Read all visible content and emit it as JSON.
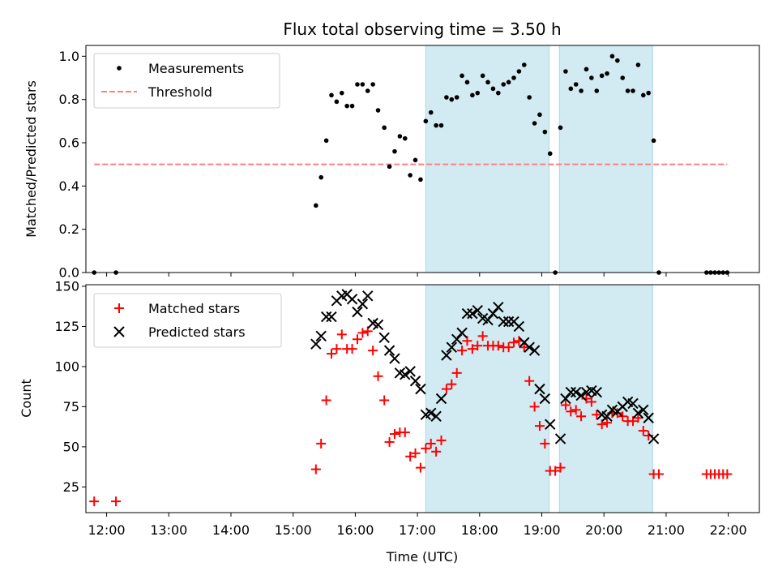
{
  "chart_data": [
    {
      "type": "scatter",
      "title": "Flux total observing time = 3.50 h",
      "xlabel": "",
      "ylabel": "Matched/Predicted stars",
      "xlim": [
        "11:40",
        "22:30"
      ],
      "ylim": [
        0.0,
        1.05
      ],
      "yticks": [
        0.0,
        0.2,
        0.4,
        0.6,
        0.8,
        1.0
      ],
      "ytick_labels": [
        "0.0",
        "0.2",
        "0.4",
        "0.6",
        "0.8",
        "1.0"
      ],
      "legend_position": "upper left",
      "shaded_intervals": [
        [
          "17:08",
          "19:07"
        ],
        [
          "19:17",
          "20:47"
        ]
      ],
      "shade_color": "#add8e6",
      "series": [
        {
          "name": "Measurements",
          "marker": "dot",
          "color": "#000000",
          "points": [
            [
              "11:48",
              0.0
            ],
            [
              "12:09",
              0.0
            ],
            [
              "15:22",
              0.31
            ],
            [
              "15:27",
              0.44
            ],
            [
              "15:32",
              0.61
            ],
            [
              "15:37",
              0.82
            ],
            [
              "15:42",
              0.79
            ],
            [
              "15:47",
              0.83
            ],
            [
              "15:52",
              0.77
            ],
            [
              "15:57",
              0.77
            ],
            [
              "16:02",
              0.87
            ],
            [
              "16:07",
              0.87
            ],
            [
              "16:12",
              0.84
            ],
            [
              "16:17",
              0.87
            ],
            [
              "16:22",
              0.75
            ],
            [
              "16:28",
              0.67
            ],
            [
              "16:33",
              0.49
            ],
            [
              "16:38",
              0.56
            ],
            [
              "16:43",
              0.63
            ],
            [
              "16:48",
              0.62
            ],
            [
              "16:53",
              0.45
            ],
            [
              "16:58",
              0.52
            ],
            [
              "17:03",
              0.43
            ],
            [
              "17:08",
              0.7
            ],
            [
              "17:13",
              0.74
            ],
            [
              "17:18",
              0.68
            ],
            [
              "17:23",
              0.68
            ],
            [
              "17:28",
              0.81
            ],
            [
              "17:33",
              0.8
            ],
            [
              "17:38",
              0.81
            ],
            [
              "17:43",
              0.91
            ],
            [
              "17:48",
              0.88
            ],
            [
              "17:53",
              0.82
            ],
            [
              "17:58",
              0.83
            ],
            [
              "18:03",
              0.91
            ],
            [
              "18:08",
              0.88
            ],
            [
              "18:13",
              0.85
            ],
            [
              "18:18",
              0.83
            ],
            [
              "18:23",
              0.87
            ],
            [
              "18:28",
              0.88
            ],
            [
              "18:33",
              0.9
            ],
            [
              "18:38",
              0.93
            ],
            [
              "18:43",
              0.96
            ],
            [
              "18:48",
              0.81
            ],
            [
              "18:53",
              0.69
            ],
            [
              "18:58",
              0.73
            ],
            [
              "19:03",
              0.65
            ],
            [
              "19:08",
              0.55
            ],
            [
              "19:13",
              0.0
            ],
            [
              "19:18",
              0.67
            ],
            [
              "19:23",
              0.93
            ],
            [
              "19:28",
              0.85
            ],
            [
              "19:33",
              0.87
            ],
            [
              "19:38",
              0.84
            ],
            [
              "19:43",
              0.94
            ],
            [
              "19:48",
              0.9
            ],
            [
              "19:53",
              0.84
            ],
            [
              "19:58",
              0.91
            ],
            [
              "20:03",
              0.92
            ],
            [
              "20:08",
              1.0
            ],
            [
              "20:13",
              0.98
            ],
            [
              "20:18",
              0.9
            ],
            [
              "20:23",
              0.84
            ],
            [
              "20:28",
              0.84
            ],
            [
              "20:33",
              0.96
            ],
            [
              "20:38",
              0.82
            ],
            [
              "20:43",
              0.83
            ],
            [
              "20:48",
              0.61
            ],
            [
              "20:53",
              0.0
            ],
            [
              "21:39",
              0.0
            ],
            [
              "21:43",
              0.0
            ],
            [
              "21:47",
              0.0
            ],
            [
              "21:51",
              0.0
            ],
            [
              "21:55",
              0.0
            ],
            [
              "21:59",
              0.0
            ]
          ]
        },
        {
          "name": "Threshold",
          "marker": "dashed-line",
          "color": "#ff7f7f",
          "points": [
            [
              "11:48",
              0.5
            ],
            [
              "21:59",
              0.5
            ]
          ]
        }
      ]
    },
    {
      "type": "scatter",
      "title": "",
      "xlabel": "Time (UTC)",
      "ylabel": "Count",
      "xlim": [
        "11:40",
        "22:30"
      ],
      "ylim": [
        9,
        151
      ],
      "xticks": [
        "12:00",
        "13:00",
        "14:00",
        "15:00",
        "16:00",
        "17:00",
        "18:00",
        "19:00",
        "20:00",
        "21:00",
        "22:00"
      ],
      "yticks": [
        25,
        50,
        75,
        100,
        125,
        150
      ],
      "ytick_labels": [
        "25",
        "50",
        "75",
        "100",
        "125",
        "150"
      ],
      "legend_position": "upper left",
      "shaded_intervals": [
        [
          "17:08",
          "19:07"
        ],
        [
          "19:17",
          "20:47"
        ]
      ],
      "shade_color": "#add8e6",
      "series": [
        {
          "name": "Matched stars",
          "marker": "plus",
          "color": "#ff0000",
          "points": [
            [
              "11:48",
              16
            ],
            [
              "12:09",
              16
            ],
            [
              "15:22",
              36
            ],
            [
              "15:27",
              52
            ],
            [
              "15:32",
              79
            ],
            [
              "15:37",
              108
            ],
            [
              "15:42",
              111
            ],
            [
              "15:47",
              120
            ],
            [
              "15:52",
              111
            ],
            [
              "15:57",
              111
            ],
            [
              "16:02",
              117
            ],
            [
              "16:07",
              121
            ],
            [
              "16:12",
              122
            ],
            [
              "16:17",
              110
            ],
            [
              "16:22",
              94
            ],
            [
              "16:28",
              79
            ],
            [
              "16:33",
              53
            ],
            [
              "16:38",
              58
            ],
            [
              "16:43",
              59
            ],
            [
              "16:48",
              59
            ],
            [
              "16:53",
              44
            ],
            [
              "16:58",
              46
            ],
            [
              "17:03",
              37
            ],
            [
              "17:08",
              49
            ],
            [
              "17:13",
              52
            ],
            [
              "17:18",
              47
            ],
            [
              "17:23",
              54
            ],
            [
              "17:28",
              86
            ],
            [
              "17:33",
              89
            ],
            [
              "17:38",
              96
            ],
            [
              "17:43",
              110
            ],
            [
              "17:48",
              116
            ],
            [
              "17:53",
              111
            ],
            [
              "17:58",
              113
            ],
            [
              "18:03",
              119
            ],
            [
              "18:08",
              113
            ],
            [
              "18:13",
              113
            ],
            [
              "18:18",
              113
            ],
            [
              "18:23",
              112
            ],
            [
              "18:28",
              112
            ],
            [
              "18:33",
              115
            ],
            [
              "18:38",
              116
            ],
            [
              "18:43",
              112
            ],
            [
              "18:48",
              91
            ],
            [
              "18:53",
              75
            ],
            [
              "18:58",
              63
            ],
            [
              "19:03",
              52
            ],
            [
              "19:08",
              35
            ],
            [
              "19:13",
              35
            ],
            [
              "19:18",
              37
            ],
            [
              "19:23",
              76
            ],
            [
              "19:28",
              72
            ],
            [
              "19:33",
              73
            ],
            [
              "19:38",
              69
            ],
            [
              "19:43",
              80
            ],
            [
              "19:48",
              78
            ],
            [
              "19:53",
              70
            ],
            [
              "19:58",
              64
            ],
            [
              "20:03",
              65
            ],
            [
              "20:08",
              71
            ],
            [
              "20:13",
              71
            ],
            [
              "20:18",
              69
            ],
            [
              "20:23",
              66
            ],
            [
              "20:28",
              66
            ],
            [
              "20:33",
              68
            ],
            [
              "20:38",
              60
            ],
            [
              "20:43",
              57
            ],
            [
              "20:48",
              33
            ],
            [
              "20:53",
              33
            ],
            [
              "21:39",
              33
            ],
            [
              "21:43",
              33
            ],
            [
              "21:47",
              33
            ],
            [
              "21:51",
              33
            ],
            [
              "21:55",
              33
            ],
            [
              "21:59",
              33
            ]
          ]
        },
        {
          "name": "Predicted stars",
          "marker": "x",
          "color": "#000000",
          "points": [
            [
              "15:22",
              114
            ],
            [
              "15:27",
              119
            ],
            [
              "15:32",
              131
            ],
            [
              "15:37",
              131
            ],
            [
              "15:42",
              141
            ],
            [
              "15:47",
              144
            ],
            [
              "15:52",
              145
            ],
            [
              "15:57",
              142
            ],
            [
              "16:02",
              134
            ],
            [
              "16:07",
              139
            ],
            [
              "16:12",
              144
            ],
            [
              "16:17",
              127
            ],
            [
              "16:22",
              126
            ],
            [
              "16:28",
              118
            ],
            [
              "16:33",
              110
            ],
            [
              "16:38",
              105
            ],
            [
              "16:43",
              96
            ],
            [
              "16:48",
              95
            ],
            [
              "16:53",
              97
            ],
            [
              "16:58",
              91
            ],
            [
              "17:03",
              86
            ],
            [
              "17:08",
              70
            ],
            [
              "17:13",
              71
            ],
            [
              "17:18",
              69
            ],
            [
              "17:23",
              80
            ],
            [
              "17:28",
              107
            ],
            [
              "17:33",
              112
            ],
            [
              "17:38",
              117
            ],
            [
              "17:43",
              121
            ],
            [
              "17:48",
              133
            ],
            [
              "17:53",
              133
            ],
            [
              "17:58",
              135
            ],
            [
              "18:03",
              130
            ],
            [
              "18:08",
              129
            ],
            [
              "18:13",
              133
            ],
            [
              "18:18",
              137
            ],
            [
              "18:23",
              128
            ],
            [
              "18:28",
              128
            ],
            [
              "18:33",
              128
            ],
            [
              "18:38",
              125
            ],
            [
              "18:43",
              115
            ],
            [
              "18:48",
              112
            ],
            [
              "18:53",
              110
            ],
            [
              "18:58",
              86
            ],
            [
              "19:03",
              80
            ],
            [
              "19:08",
              64
            ],
            [
              "19:18",
              55
            ],
            [
              "19:23",
              80
            ],
            [
              "19:28",
              84
            ],
            [
              "19:33",
              84
            ],
            [
              "19:38",
              82
            ],
            [
              "19:43",
              84
            ],
            [
              "19:48",
              85
            ],
            [
              "19:53",
              84
            ],
            [
              "19:58",
              70
            ],
            [
              "20:03",
              69
            ],
            [
              "20:08",
              73
            ],
            [
              "20:13",
              72
            ],
            [
              "20:18",
              75
            ],
            [
              "20:23",
              78
            ],
            [
              "20:28",
              77
            ],
            [
              "20:33",
              71
            ],
            [
              "20:38",
              73
            ],
            [
              "20:43",
              68
            ],
            [
              "20:48",
              55
            ]
          ]
        }
      ]
    }
  ]
}
